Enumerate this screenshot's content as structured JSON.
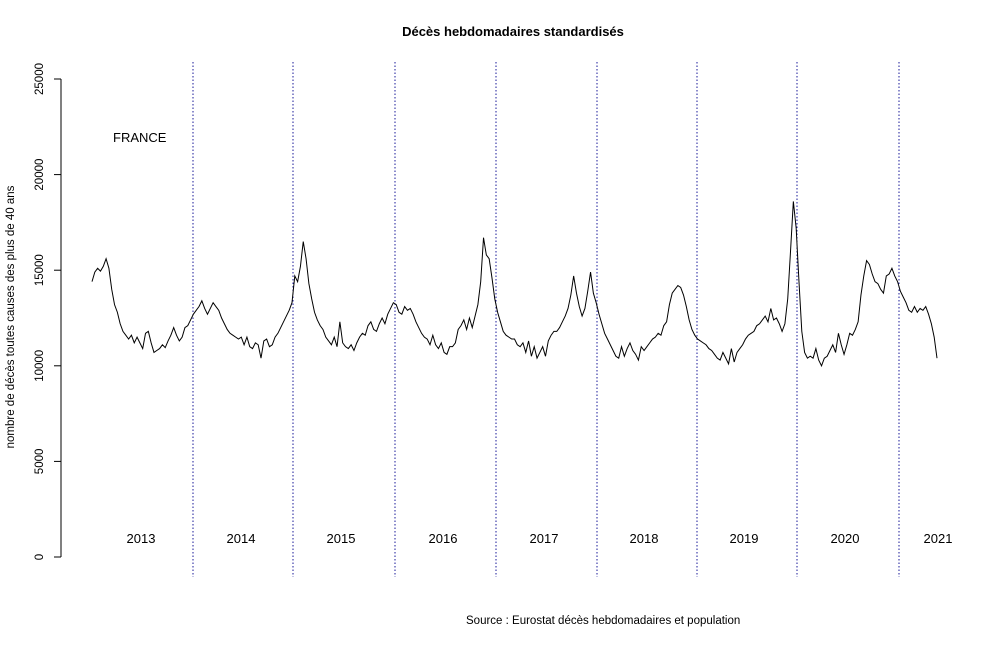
{
  "chart_data": {
    "type": "line",
    "title": "Décès hebdomadaires standardisés",
    "ylabel": "nombre de décès toutes causes des plus de 40 ans",
    "xlabel": "",
    "ylim": [
      0,
      25000
    ],
    "yticks": [
      0,
      5000,
      10000,
      15000,
      20000,
      25000
    ],
    "annotation": "FRANCE",
    "source": "Source : Eurostat décès hebdomadaires et population",
    "year_labels": [
      "2013",
      "2014",
      "2015",
      "2016",
      "2017",
      "2018",
      "2019",
      "2020",
      "2021"
    ],
    "grid": false,
    "series": [
      {
        "values": [
          14400,
          14900,
          15100,
          14950,
          15200,
          15600,
          15100,
          14000,
          13200,
          12800,
          12200,
          11800,
          11600,
          11400,
          11600,
          11200,
          11500,
          11200,
          10900,
          11700,
          11800,
          11200,
          10700,
          10800,
          10900,
          11100,
          10950,
          11300,
          11600,
          12000,
          11600,
          11300,
          11500,
          12000,
          12100,
          12400,
          12700,
          12900,
          13100,
          13400,
          13000,
          12700,
          13000,
          13300,
          13100,
          12900,
          12500,
          12200,
          11900,
          11700,
          11600,
          11500,
          11400,
          11500,
          11100,
          11500,
          11000,
          10900,
          11200,
          11100,
          10400,
          11300,
          11400,
          11000,
          11100,
          11500,
          11700,
          12000,
          12300,
          12600,
          12900,
          13300,
          14700,
          14400,
          15200,
          16500,
          15600,
          14300,
          13500,
          12800,
          12400,
          12100,
          11900,
          11500,
          11300,
          11100,
          11500,
          11000,
          12300,
          11200,
          11000,
          10900,
          11100,
          10800,
          11200,
          11500,
          11700,
          11600,
          12100,
          12300,
          11900,
          11800,
          12200,
          12500,
          12200,
          12700,
          13000,
          13300,
          13200,
          12800,
          12700,
          13100,
          12900,
          13000,
          12700,
          12300,
          12000,
          11700,
          11500,
          11400,
          11100,
          11600,
          11100,
          10900,
          11200,
          10700,
          10600,
          11000,
          11000,
          11200,
          11900,
          12100,
          12400,
          11900,
          12500,
          12000,
          12600,
          13200,
          14400,
          16700,
          15800,
          15600,
          14600,
          13500,
          12800,
          12300,
          11800,
          11600,
          11500,
          11400,
          11400,
          11100,
          11000,
          11200,
          10700,
          11300,
          10500,
          11000,
          10400,
          10700,
          11000,
          10500,
          11300,
          11600,
          11800,
          11800,
          12000,
          12300,
          12600,
          13000,
          13700,
          14700,
          13800,
          13100,
          12600,
          13000,
          13900,
          14900,
          13800,
          13300,
          12700,
          12200,
          11700,
          11400,
          11100,
          10800,
          10500,
          10400,
          11000,
          10500,
          10900,
          11200,
          10800,
          10600,
          10300,
          11000,
          10800,
          11000,
          11200,
          11400,
          11500,
          11700,
          11600,
          12100,
          12300,
          13200,
          13800,
          14000,
          14200,
          14100,
          13700,
          13100,
          12400,
          11900,
          11600,
          11400,
          11300,
          11200,
          11100,
          10900,
          10800,
          10600,
          10400,
          10300,
          10700,
          10400,
          10100,
          10900,
          10200,
          10700,
          10900,
          11100,
          11400,
          11600,
          11700,
          11800,
          12100,
          12200,
          12400,
          12600,
          12300,
          13000,
          12400,
          12500,
          12200,
          11800,
          12200,
          13500,
          16000,
          18600,
          17200,
          14400,
          11800,
          10700,
          10400,
          10500,
          10400,
          10900,
          10300,
          10000,
          10400,
          10500,
          10800,
          11100,
          10700,
          11700,
          11100,
          10600,
          11100,
          11700,
          11600,
          11900,
          12300,
          13700,
          14700,
          15500,
          15300,
          14800,
          14400,
          14300,
          14000,
          13800,
          14700,
          14800,
          15100,
          14700,
          14400,
          13900,
          13600,
          13300,
          12900,
          12800,
          13100,
          12800,
          13000,
          12900,
          13100,
          12700,
          12200,
          11500,
          10400
        ]
      }
    ]
  }
}
